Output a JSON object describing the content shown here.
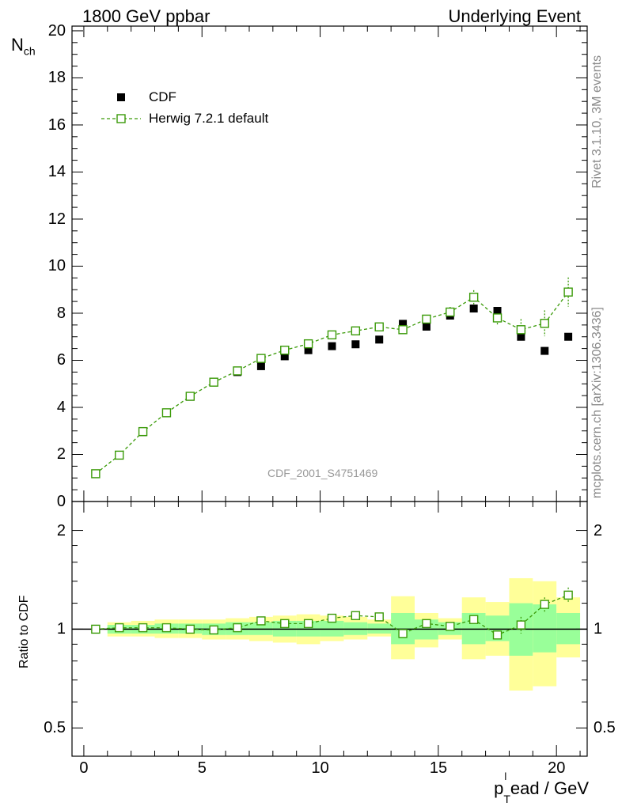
{
  "header": {
    "left": "1800 GeV ppbar",
    "right": "Underlying Event"
  },
  "side_text": {
    "top": "Rivet 3.1.10,  3M events",
    "bottom": "mcplots.cern.ch [arXiv:1306.3436]"
  },
  "watermark": "CDF_2001_S4751469",
  "chart_data": [
    {
      "type": "scatter",
      "panel": "main",
      "ylabel": "N",
      "ylabel_sub": "ch",
      "ylim": [
        0,
        20.2
      ],
      "xlim": [
        -0.5,
        21.3
      ],
      "yticks": [
        0,
        2,
        4,
        6,
        8,
        10,
        12,
        14,
        16,
        18,
        20
      ],
      "ytick_labels": [
        "0",
        "2",
        "4",
        "6",
        "8",
        "10",
        "12",
        "14",
        "16",
        "18",
        "20"
      ],
      "legend": {
        "placement": "top-left",
        "entries": [
          "CDF",
          "Herwig 7.2.1 default"
        ]
      },
      "series": [
        {
          "name": "CDF",
          "style": "filled-square",
          "color": "#000000",
          "x": [
            0.5,
            1.5,
            2.5,
            3.5,
            4.5,
            5.5,
            6.5,
            7.5,
            8.5,
            9.5,
            10.5,
            11.5,
            12.5,
            13.5,
            14.5,
            15.5,
            16.5,
            17.5,
            18.5,
            19.5,
            20.5
          ],
          "y": [
            1.18,
            1.95,
            2.95,
            3.75,
            4.45,
            5.07,
            5.5,
            5.75,
            6.17,
            6.43,
            6.6,
            6.68,
            6.88,
            7.55,
            7.43,
            7.9,
            8.2,
            8.1,
            7.0,
            6.4,
            7.0
          ]
        },
        {
          "name": "Herwig 7.2.1 default",
          "style": "open-square-dashed",
          "color": "#3a9a08",
          "x": [
            0.5,
            1.5,
            2.5,
            3.5,
            4.5,
            5.5,
            6.5,
            7.5,
            8.5,
            9.5,
            10.5,
            11.5,
            12.5,
            13.5,
            14.5,
            15.5,
            16.5,
            17.5,
            18.5,
            19.5,
            20.5
          ],
          "y": [
            1.18,
            1.97,
            2.97,
            3.77,
            4.47,
            5.07,
            5.55,
            6.08,
            6.43,
            6.7,
            7.08,
            7.25,
            7.42,
            7.3,
            7.75,
            8.05,
            8.68,
            7.8,
            7.3,
            7.57,
            8.9
          ],
          "err": [
            0.05,
            0.05,
            0.05,
            0.06,
            0.06,
            0.06,
            0.07,
            0.08,
            0.09,
            0.1,
            0.1,
            0.12,
            0.13,
            0.15,
            0.18,
            0.22,
            0.3,
            0.33,
            0.45,
            0.55,
            0.62
          ]
        }
      ]
    },
    {
      "type": "scatter",
      "panel": "ratio",
      "ylabel": "Ratio to CDF",
      "xlabel": "p",
      "xlabel_sub": "T",
      "xlabel_sup": "l",
      "xlabel_rest": "ead / GeV",
      "log_y": true,
      "ylim": [
        0.41,
        2.45
      ],
      "xlim": [
        -0.5,
        21.3
      ],
      "xticks": [
        0,
        5,
        10,
        15,
        20
      ],
      "xtick_labels": [
        "0",
        "5",
        "10",
        "15",
        "20"
      ],
      "yticks": [
        0.5,
        1,
        2
      ],
      "ytick_labels": [
        "0.5",
        "1",
        "2"
      ],
      "bands": {
        "edges": [
          1,
          2,
          3,
          4,
          5,
          6,
          7,
          8,
          9,
          10,
          11,
          12,
          13,
          14,
          15,
          16,
          17,
          18,
          19,
          20,
          21
        ],
        "yellow_low": [
          0.95,
          0.95,
          0.94,
          0.94,
          0.93,
          0.93,
          0.92,
          0.91,
          0.9,
          0.92,
          0.93,
          0.95,
          0.81,
          0.88,
          0.93,
          0.81,
          0.83,
          0.65,
          0.67,
          0.82
        ],
        "yellow_high": [
          1.05,
          1.06,
          1.07,
          1.07,
          1.07,
          1.08,
          1.09,
          1.1,
          1.11,
          1.1,
          1.09,
          1.07,
          1.26,
          1.12,
          1.08,
          1.25,
          1.21,
          1.43,
          1.4,
          1.25
        ],
        "green_low": [
          0.97,
          0.97,
          0.97,
          0.97,
          0.96,
          0.96,
          0.96,
          0.95,
          0.95,
          0.95,
          0.96,
          0.97,
          0.9,
          0.93,
          0.96,
          0.9,
          0.92,
          0.83,
          0.85,
          0.9
        ],
        "green_high": [
          1.03,
          1.03,
          1.04,
          1.04,
          1.04,
          1.05,
          1.05,
          1.06,
          1.06,
          1.06,
          1.05,
          1.04,
          1.12,
          1.07,
          1.05,
          1.12,
          1.1,
          1.2,
          1.19,
          1.12
        ]
      },
      "reference_line": 1.0,
      "series": [
        {
          "name": "Herwig 7.2.1 default",
          "style": "open-square-dashed",
          "color": "#3a9a08",
          "x": [
            0.5,
            1.5,
            2.5,
            3.5,
            4.5,
            5.5,
            6.5,
            7.5,
            8.5,
            9.5,
            10.5,
            11.5,
            12.5,
            13.5,
            14.5,
            15.5,
            16.5,
            17.5,
            18.5,
            19.5,
            20.5
          ],
          "y": [
            1.0,
            1.01,
            1.01,
            1.01,
            1.0,
            0.995,
            1.01,
            1.06,
            1.04,
            1.04,
            1.08,
            1.1,
            1.09,
            0.97,
            1.04,
            1.02,
            1.07,
            0.96,
            1.03,
            1.19,
            1.27
          ],
          "err": [
            0.005,
            0.005,
            0.006,
            0.006,
            0.006,
            0.006,
            0.007,
            0.008,
            0.008,
            0.009,
            0.01,
            0.01,
            0.012,
            0.014,
            0.016,
            0.018,
            0.025,
            0.03,
            0.06,
            0.06,
            0.07
          ]
        }
      ]
    }
  ]
}
